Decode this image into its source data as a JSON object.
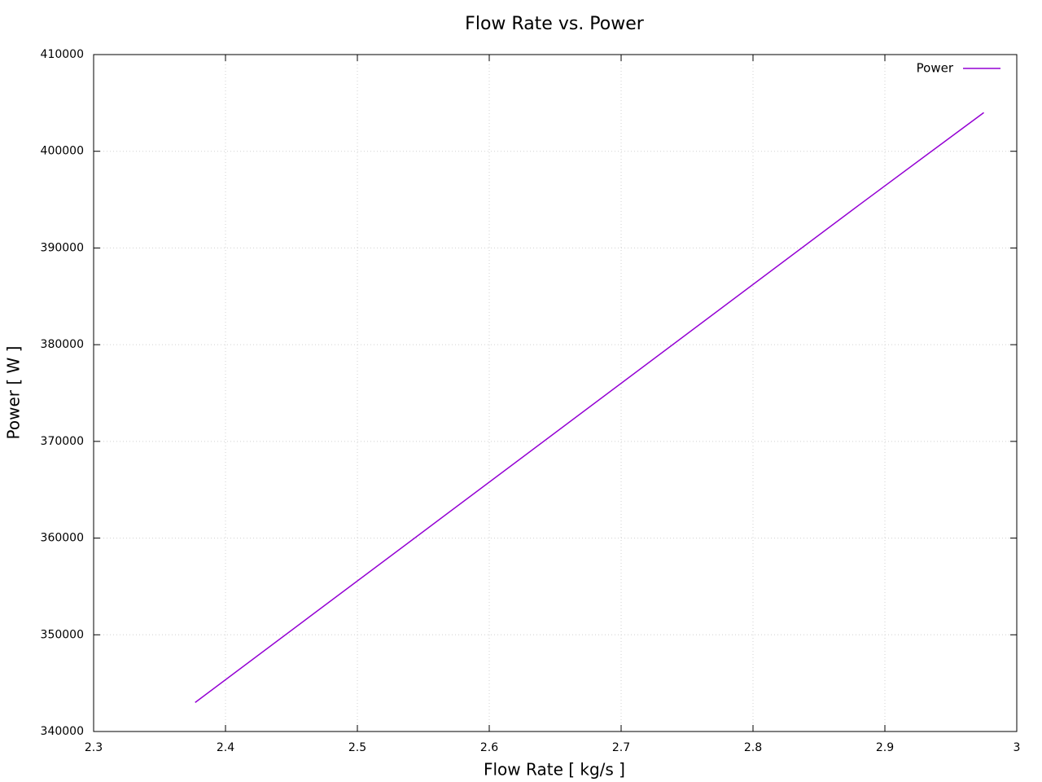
{
  "chart_data": {
    "type": "line",
    "title": "Flow Rate vs. Power",
    "x_label": "Flow Rate [ kg/s ]",
    "y_label": "Power [ W ]",
    "x": [
      2.377,
      2.88,
      2.975
    ],
    "series": [
      {
        "name": "Power",
        "color": "#9400d3",
        "values": [
          343000,
          394400,
          404000
        ]
      }
    ],
    "xlim": [
      2.3,
      3
    ],
    "xticks": [
      2.3,
      2.4,
      2.5,
      2.6,
      2.7,
      2.8,
      2.9,
      3
    ],
    "ylim": [
      340000,
      410000
    ],
    "yticks": [
      340000,
      350000,
      360000,
      370000,
      380000,
      390000,
      400000,
      410000
    ],
    "grid": true,
    "legend": "top-right"
  }
}
